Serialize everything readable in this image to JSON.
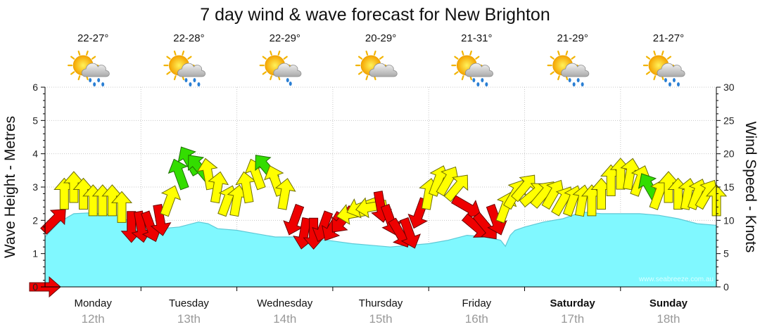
{
  "chart_data": {
    "type": "area",
    "title": "7 day wind & wave forecast for New Brighton",
    "left_axis_label": "Wave Height - Metres",
    "right_axis_label": "Wind Speed - Knots",
    "left_ylim": [
      0,
      6
    ],
    "right_ylim": [
      0,
      30
    ],
    "left_ticks": [
      "0",
      "1",
      "2",
      "3",
      "4",
      "5",
      "6"
    ],
    "right_ticks": [
      "0",
      "5",
      "10",
      "15",
      "20",
      "25",
      "30"
    ],
    "grid": true,
    "watermark": "www.seabreeze.com.au",
    "colors": {
      "wave": "#80f8ff",
      "wave_line": "#5ec9d6",
      "wind_light": "#ffff00",
      "wind_strong": "#33dd00",
      "wind_offshore": "#ee0000"
    },
    "days": [
      {
        "name": "Monday",
        "date": "12th",
        "temps": "22-27°",
        "icon": "showers-icon",
        "bold": false
      },
      {
        "name": "Tuesday",
        "date": "13th",
        "temps": "22-28°",
        "icon": "showers-icon",
        "bold": false
      },
      {
        "name": "Wednesday",
        "date": "14th",
        "temps": "22-29°",
        "icon": "light-showers-icon",
        "bold": false
      },
      {
        "name": "Thursday",
        "date": "15th",
        "temps": "20-29°",
        "icon": "partly-cloudy-icon",
        "bold": false
      },
      {
        "name": "Friday",
        "date": "16th",
        "temps": "21-31°",
        "icon": "showers-icon",
        "bold": false
      },
      {
        "name": "Saturday",
        "date": "17th",
        "temps": "21-29°",
        "icon": "showers-icon",
        "bold": true
      },
      {
        "name": "Sunday",
        "date": "18th",
        "temps": "21-27°",
        "icon": "showers-icon",
        "bold": true
      }
    ],
    "wave_height_series": {
      "name": "Wave Height",
      "units": "m",
      "t": [
        0.0,
        0.15,
        0.3,
        0.45,
        0.6,
        0.75,
        0.9,
        1.0,
        1.2,
        1.4,
        1.6,
        1.7,
        1.8,
        2.0,
        2.2,
        2.4,
        2.6,
        2.8,
        3.0,
        3.2,
        3.4,
        3.6,
        3.8,
        4.0,
        4.2,
        4.4,
        4.6,
        4.75,
        4.8,
        4.85,
        4.9,
        5.0,
        5.2,
        5.4,
        5.6,
        5.8,
        6.0,
        6.2,
        6.4,
        6.6,
        6.8,
        7.0
      ],
      "values": [
        1.5,
        1.95,
        2.2,
        2.22,
        2.2,
        2.15,
        1.95,
        1.75,
        1.75,
        1.8,
        1.95,
        1.9,
        1.75,
        1.7,
        1.6,
        1.5,
        1.5,
        1.45,
        1.38,
        1.3,
        1.25,
        1.2,
        1.25,
        1.3,
        1.4,
        1.55,
        1.5,
        1.4,
        1.22,
        1.55,
        1.7,
        1.8,
        1.95,
        2.05,
        2.25,
        2.2,
        2.2,
        2.2,
        2.15,
        2.05,
        1.9,
        1.85
      ]
    },
    "wind_series": {
      "name": "Wind Speed",
      "units": "knots",
      "t": [
        0.0,
        0.1,
        0.2,
        0.3,
        0.4,
        0.5,
        0.6,
        0.7,
        0.8,
        0.9,
        1.0,
        1.1,
        1.2,
        1.3,
        1.4,
        1.5,
        1.6,
        1.7,
        1.8,
        1.9,
        2.0,
        2.1,
        2.2,
        2.3,
        2.4,
        2.5,
        2.6,
        2.7,
        2.8,
        2.9,
        3.0,
        3.1,
        3.2,
        3.3,
        3.4,
        3.5,
        3.6,
        3.7,
        3.8,
        3.9,
        4.0,
        4.1,
        4.2,
        4.3,
        4.4,
        4.5,
        4.6,
        4.7,
        4.8,
        4.9,
        5.0,
        5.1,
        5.2,
        5.3,
        5.4,
        5.5,
        5.6,
        5.7,
        5.8,
        5.9,
        6.0,
        6.1,
        6.2,
        6.3,
        6.4,
        6.5,
        6.6,
        6.7,
        6.8,
        6.9,
        7.0
      ],
      "values": [
        0,
        10,
        14,
        15,
        14,
        13,
        13,
        13,
        12,
        9,
        9,
        9,
        10,
        13,
        17,
        19,
        18,
        17,
        15,
        13,
        13,
        15,
        17,
        18,
        16,
        14,
        10,
        8,
        8,
        9,
        9,
        10,
        11,
        12,
        12,
        12,
        10,
        8,
        8,
        11,
        14,
        16,
        16,
        15,
        12,
        9,
        9,
        10,
        12,
        14,
        15,
        14,
        14,
        14,
        13,
        13,
        13,
        13,
        14,
        16,
        17,
        17,
        16,
        15,
        14,
        15,
        14,
        14,
        14,
        14,
        13
      ],
      "arrow_colors": [
        "red",
        "red",
        "yellow",
        "yellow",
        "yellow",
        "yellow",
        "yellow",
        "yellow",
        "yellow",
        "red",
        "red",
        "red",
        "red",
        "yellow",
        "green",
        "green",
        "green",
        "yellow",
        "yellow",
        "yellow",
        "yellow",
        "yellow",
        "yellow",
        "green",
        "yellow",
        "yellow",
        "red",
        "red",
        "red",
        "red",
        "red",
        "red",
        "yellow",
        "yellow",
        "yellow",
        "red",
        "red",
        "red",
        "red",
        "red",
        "yellow",
        "yellow",
        "yellow",
        "yellow",
        "red",
        "red",
        "red",
        "red",
        "yellow",
        "yellow",
        "yellow",
        "yellow",
        "yellow",
        "yellow",
        "yellow",
        "yellow",
        "yellow",
        "yellow",
        "yellow",
        "yellow",
        "yellow",
        "yellow",
        "yellow",
        "green",
        "yellow",
        "yellow",
        "yellow",
        "yellow",
        "yellow",
        "yellow",
        "yellow"
      ],
      "arrow_direction_deg": [
        90,
        45,
        0,
        0,
        0,
        0,
        0,
        0,
        0,
        180,
        170,
        160,
        170,
        20,
        340,
        330,
        320,
        350,
        10,
        20,
        10,
        350,
        340,
        320,
        340,
        10,
        200,
        190,
        180,
        200,
        210,
        220,
        260,
        250,
        260,
        170,
        160,
        150,
        160,
        200,
        10,
        20,
        30,
        40,
        120,
        130,
        140,
        160,
        20,
        30,
        40,
        50,
        40,
        30,
        30,
        20,
        10,
        0,
        0,
        0,
        0,
        10,
        20,
        330,
        20,
        0,
        0,
        10,
        20,
        30,
        0
      ]
    }
  }
}
